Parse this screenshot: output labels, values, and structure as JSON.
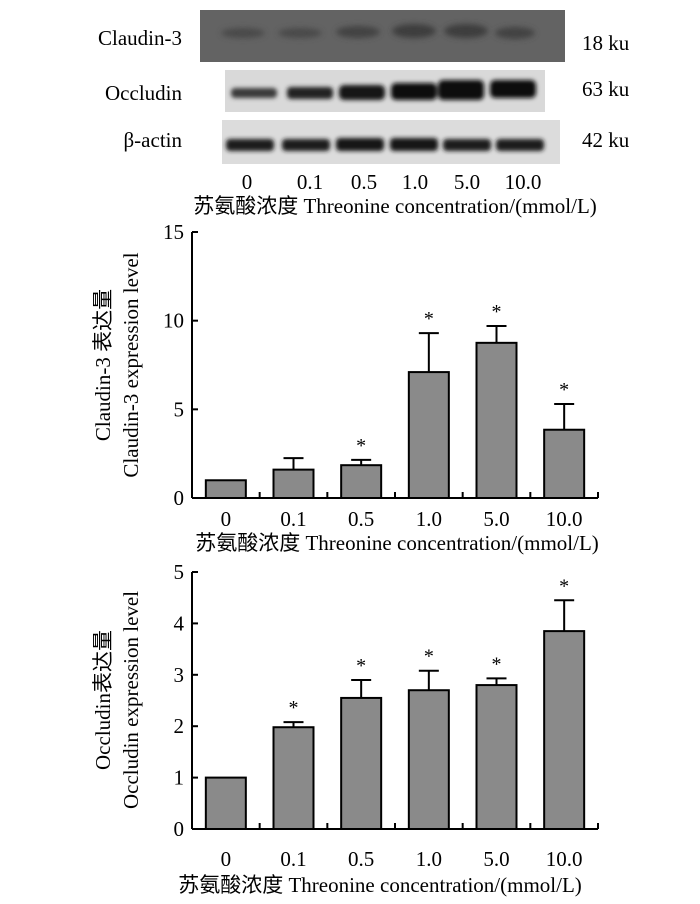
{
  "blot": {
    "bands": [
      {
        "protein": "Claudin-3",
        "size": "18 ku"
      },
      {
        "protein": "Occludin",
        "size": "63 ku"
      },
      {
        "protein": "β-actin",
        "size": "42 ku"
      }
    ],
    "lanes": [
      "0",
      "0.1",
      "0.5",
      "1.0",
      "5.0",
      "10.0"
    ],
    "xlabel": "苏氨酸浓度 Threonine concentration/(mmol/L)"
  },
  "chart_data": [
    {
      "type": "bar",
      "categories": [
        "0",
        "0.1",
        "0.5",
        "1.0",
        "5.0",
        "10.0"
      ],
      "values": [
        1.0,
        1.6,
        1.85,
        7.1,
        8.75,
        3.85
      ],
      "errors": [
        0.0,
        0.65,
        0.3,
        2.2,
        0.95,
        1.45
      ],
      "significant": [
        false,
        false,
        true,
        true,
        true,
        true
      ],
      "marker": "*",
      "ylabel_cn": "Claudin-3 表达量",
      "ylabel": "Claudin-3 expression level",
      "xlabel": "苏氨酸浓度 Threonine concentration/(mmol/L)",
      "ylim": [
        0,
        15
      ],
      "yticks": [
        0,
        5,
        10,
        15
      ],
      "bar_color": "#8a8a8a"
    },
    {
      "type": "bar",
      "categories": [
        "0",
        "0.1",
        "0.5",
        "1.0",
        "5.0",
        "10.0"
      ],
      "values": [
        1.0,
        1.98,
        2.55,
        2.7,
        2.8,
        3.85
      ],
      "errors": [
        0.0,
        0.1,
        0.35,
        0.38,
        0.13,
        0.6
      ],
      "significant": [
        false,
        true,
        true,
        true,
        true,
        true
      ],
      "marker": "*",
      "ylabel_cn": "Occludin表达量",
      "ylabel": "Occludin expression level",
      "xlabel": "苏氨酸浓度 Threonine concentration/(mmol/L)",
      "ylim": [
        0,
        5
      ],
      "yticks": [
        0,
        1,
        2,
        3,
        4,
        5
      ],
      "bar_color": "#8a8a8a"
    }
  ]
}
